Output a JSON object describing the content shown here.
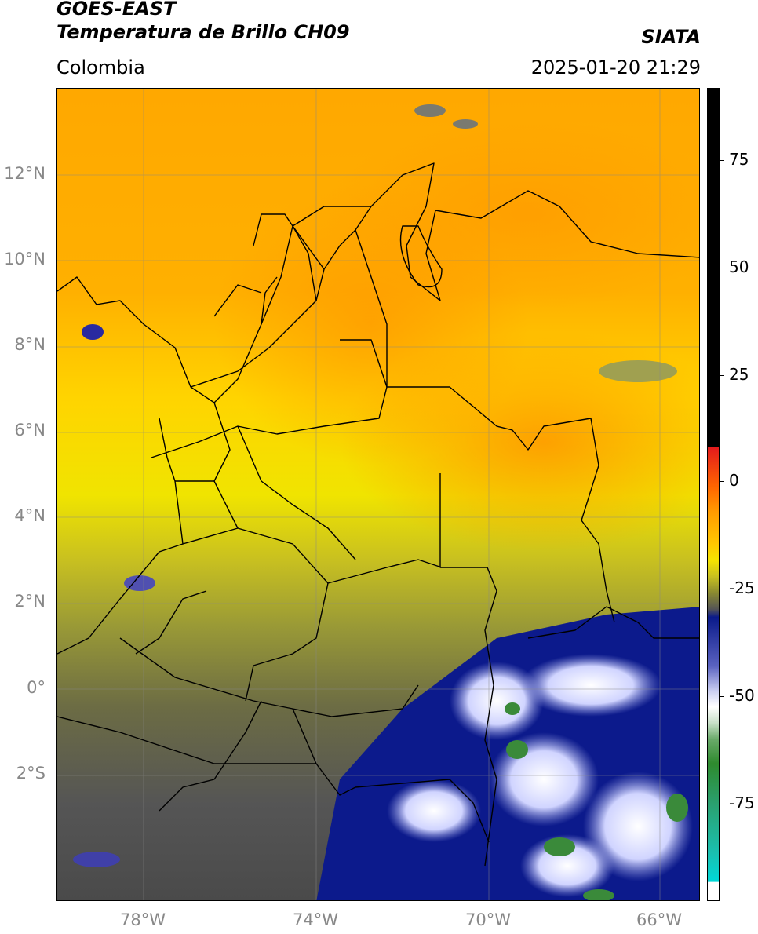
{
  "header": {
    "title_line1": "GOES-EAST",
    "title_line2": "Temperatura de Brillo CH09",
    "source": "SIATA",
    "region": "Colombia",
    "timestamp": "2025-01-20 21:29"
  },
  "map": {
    "lat_labels": [
      "12°N",
      "10°N",
      "8°N",
      "6°N",
      "4°N",
      "2°N",
      "0°",
      "2°S"
    ],
    "lon_labels": [
      "78°W",
      "74°W",
      "70°W",
      "66°W"
    ]
  },
  "colorbar": {
    "labels": [
      "75",
      "50",
      "25",
      "0",
      "-25",
      "-50",
      "-75"
    ],
    "colors": {
      "black": "#000000",
      "red": "#e41a1c",
      "orange": "#ff8c00",
      "yellow": "#f5e400",
      "olive": "#8a8a30",
      "gray": "#505050",
      "navy": "#0a1a8a",
      "white": "#ffffff",
      "green": "#2e8b2e",
      "cyan": "#00d8d8"
    }
  }
}
